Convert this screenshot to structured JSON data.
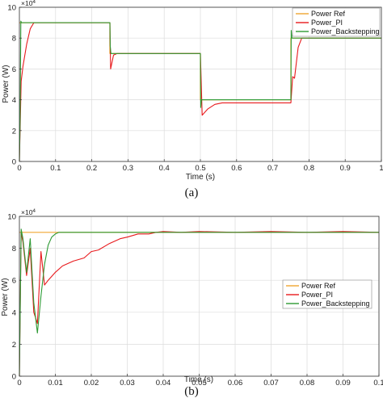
{
  "chart_data": [
    {
      "type": "line",
      "caption": "(a)",
      "xlabel": "Time (s)",
      "ylabel": "Power (W)",
      "y_exponent": "×10",
      "y_exponent_power": "4",
      "xlim": [
        0,
        1
      ],
      "ylim": [
        0,
        10
      ],
      "grid": true,
      "legend_position": "top-right",
      "xticks": [
        "0",
        "0.1",
        "0.2",
        "0.3",
        "0.4",
        "0.5",
        "0.6",
        "0.7",
        "0.8",
        "0.9",
        "1"
      ],
      "yticks": [
        "0",
        "2",
        "4",
        "6",
        "8",
        "10"
      ],
      "series": [
        {
          "name": "Power Ref",
          "color": "#f0a630",
          "x": [
            0,
            0.25,
            0.25,
            0.5,
            0.5,
            0.75,
            0.75,
            1
          ],
          "y": [
            9.0,
            9.0,
            7.0,
            7.0,
            4.0,
            4.0,
            8.0,
            8.0
          ]
        },
        {
          "name": "Power_PI",
          "color": "#e8191c",
          "x": [
            0,
            0.005,
            0.01,
            0.02,
            0.03,
            0.04,
            0.25,
            0.252,
            0.26,
            0.27,
            0.5,
            0.505,
            0.52,
            0.54,
            0.56,
            0.6,
            0.65,
            0.75,
            0.755,
            0.76,
            0.77,
            0.78,
            1
          ],
          "y": [
            0,
            5.2,
            6.2,
            7.6,
            8.6,
            9.0,
            9.0,
            6.0,
            6.9,
            7.0,
            7.0,
            3.0,
            3.4,
            3.7,
            3.8,
            3.8,
            3.8,
            3.8,
            5.5,
            5.4,
            7.4,
            8.0,
            8.0
          ]
        },
        {
          "name": "Power_Backstepping",
          "color": "#2e9a34",
          "x": [
            0,
            0.002,
            0.004,
            0.006,
            0.01,
            0.25,
            0.251,
            0.253,
            0.5,
            0.501,
            0.503,
            0.75,
            0.751,
            0.753,
            1
          ],
          "y": [
            0,
            2.7,
            9.1,
            9.0,
            9.0,
            9.0,
            7.5,
            7.0,
            7.0,
            3.5,
            4.0,
            4.0,
            8.5,
            8.0,
            8.0
          ]
        }
      ]
    },
    {
      "type": "line",
      "caption": "(b)",
      "xlabel": "Time (s)",
      "ylabel": "Power (W)",
      "y_exponent": "×10",
      "y_exponent_power": "4",
      "xlim": [
        0,
        0.1
      ],
      "ylim": [
        0,
        10
      ],
      "grid": true,
      "legend_position": "center-right",
      "xticks": [
        "0",
        "0.01",
        "0.02",
        "0.03",
        "0.04",
        "0.05",
        "0.06",
        "0.07",
        "0.08",
        "0.09",
        "0.1"
      ],
      "yticks": [
        "0",
        "2",
        "4",
        "6",
        "8",
        "10"
      ],
      "series": [
        {
          "name": "Power Ref",
          "color": "#f0a630",
          "x": [
            0,
            0.1
          ],
          "y": [
            9.0,
            9.0
          ]
        },
        {
          "name": "Power_PI",
          "color": "#e8191c",
          "x": [
            0,
            0.0005,
            0.001,
            0.002,
            0.003,
            0.004,
            0.005,
            0.006,
            0.007,
            0.008,
            0.01,
            0.012,
            0.015,
            0.018,
            0.02,
            0.022,
            0.025,
            0.028,
            0.03,
            0.033,
            0.036,
            0.038,
            0.04,
            0.045,
            0.05,
            0.06,
            0.07,
            0.08,
            0.09,
            0.1
          ],
          "y": [
            0,
            9.0,
            8.4,
            6.3,
            8.0,
            4.0,
            3.3,
            7.8,
            5.7,
            6.0,
            6.5,
            6.9,
            7.2,
            7.4,
            7.8,
            7.9,
            8.3,
            8.6,
            8.7,
            8.9,
            8.9,
            9.0,
            9.05,
            9.0,
            9.05,
            9.0,
            9.05,
            9.0,
            9.05,
            9.0
          ]
        },
        {
          "name": "Power_Backstepping",
          "color": "#2e9a34",
          "x": [
            0,
            0.0005,
            0.001,
            0.002,
            0.003,
            0.004,
            0.005,
            0.006,
            0.007,
            0.008,
            0.009,
            0.01,
            0.011,
            0.012,
            0.014,
            0.016,
            0.02,
            0.03,
            0.04,
            0.06,
            0.08,
            0.1
          ],
          "y": [
            0,
            9.2,
            8.6,
            6.5,
            8.6,
            4.6,
            2.7,
            5.0,
            7.0,
            8.2,
            8.7,
            8.9,
            9.0,
            9.0,
            9.0,
            9.0,
            9.0,
            9.0,
            9.0,
            9.0,
            9.0,
            9.0
          ]
        }
      ]
    }
  ]
}
